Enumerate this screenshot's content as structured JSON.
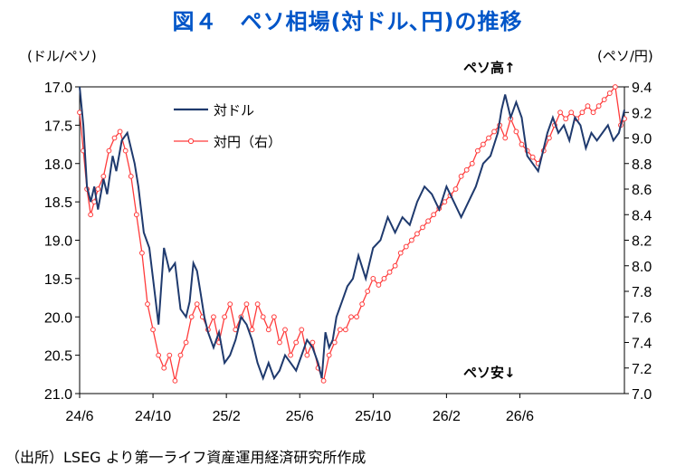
{
  "title": "図４　ペソ相場(対ドル､円)の推移",
  "source": "（出所）LSEG より第一ライフ資産運用経済研究所作成",
  "colors": {
    "usd_line": "#1f3a6e",
    "jpy_line": "#ff3b3b",
    "title": "#0055c8"
  },
  "chart_data": {
    "type": "line",
    "left_axis_label": "(ドル/ペソ)",
    "right_axis_label": "(ペソ/円)",
    "annotation_top": "ペソ高↑",
    "annotation_bottom": "ペソ安↓",
    "x_ticks": [
      "24/6",
      "24/10",
      "25/2",
      "25/6",
      "25/10",
      "26/2",
      "26/6"
    ],
    "x_range_months": [
      0,
      26.5
    ],
    "left_ylim": [
      21.0,
      17.0
    ],
    "left_inverted": true,
    "left_ticks": [
      "17.0",
      "17.5",
      "18.0",
      "18.5",
      "19.0",
      "19.5",
      "20.0",
      "20.5",
      "21.0"
    ],
    "right_ylim": [
      7.0,
      9.4
    ],
    "right_ticks": [
      "9.4",
      "9.2",
      "9.0",
      "8.8",
      "8.6",
      "8.4",
      "8.2",
      "8.0",
      "7.8",
      "7.6",
      "7.4",
      "7.2",
      "7.0"
    ],
    "grid": false,
    "legend_position": "top-left",
    "series": [
      {
        "name": "対ドル",
        "axis": "left",
        "marker": false,
        "points": [
          [
            0,
            17.0
          ],
          [
            0.2,
            17.5
          ],
          [
            0.4,
            18.3
          ],
          [
            0.6,
            18.5
          ],
          [
            0.8,
            18.3
          ],
          [
            1.0,
            18.6
          ],
          [
            1.3,
            18.2
          ],
          [
            1.5,
            18.4
          ],
          [
            1.8,
            17.9
          ],
          [
            2.0,
            18.1
          ],
          [
            2.3,
            17.7
          ],
          [
            2.6,
            17.6
          ],
          [
            3.0,
            18.0
          ],
          [
            3.2,
            18.3
          ],
          [
            3.5,
            18.9
          ],
          [
            3.8,
            19.1
          ],
          [
            4.0,
            19.5
          ],
          [
            4.3,
            20.1
          ],
          [
            4.6,
            19.1
          ],
          [
            4.9,
            19.4
          ],
          [
            5.2,
            19.3
          ],
          [
            5.5,
            19.9
          ],
          [
            5.8,
            20.0
          ],
          [
            6.0,
            19.8
          ],
          [
            6.2,
            19.3
          ],
          [
            6.4,
            19.4
          ],
          [
            6.6,
            19.7
          ],
          [
            6.8,
            20.0
          ],
          [
            7.0,
            20.2
          ],
          [
            7.3,
            20.4
          ],
          [
            7.6,
            20.2
          ],
          [
            7.9,
            20.6
          ],
          [
            8.2,
            20.5
          ],
          [
            8.5,
            20.3
          ],
          [
            8.8,
            20.0
          ],
          [
            9.1,
            20.1
          ],
          [
            9.4,
            20.3
          ],
          [
            9.7,
            20.6
          ],
          [
            10.0,
            20.8
          ],
          [
            10.3,
            20.6
          ],
          [
            10.6,
            20.8
          ],
          [
            10.9,
            20.7
          ],
          [
            11.2,
            20.5
          ],
          [
            11.5,
            20.6
          ],
          [
            11.8,
            20.7
          ],
          [
            12.1,
            20.5
          ],
          [
            12.4,
            20.3
          ],
          [
            12.7,
            20.4
          ],
          [
            13.0,
            20.6
          ],
          [
            13.2,
            20.8
          ],
          [
            13.4,
            20.2
          ],
          [
            13.6,
            20.4
          ],
          [
            13.8,
            20.3
          ],
          [
            14.0,
            20.0
          ],
          [
            14.3,
            19.8
          ],
          [
            14.6,
            19.6
          ],
          [
            14.9,
            19.5
          ],
          [
            15.2,
            19.2
          ],
          [
            15.6,
            19.5
          ],
          [
            16.0,
            19.1
          ],
          [
            16.4,
            19.0
          ],
          [
            16.8,
            18.7
          ],
          [
            17.2,
            18.9
          ],
          [
            17.6,
            18.7
          ],
          [
            18.0,
            18.8
          ],
          [
            18.4,
            18.5
          ],
          [
            18.8,
            18.3
          ],
          [
            19.2,
            18.4
          ],
          [
            19.6,
            18.6
          ],
          [
            20.0,
            18.3
          ],
          [
            20.4,
            18.5
          ],
          [
            20.8,
            18.7
          ],
          [
            21.2,
            18.5
          ],
          [
            21.6,
            18.3
          ],
          [
            22.0,
            18.0
          ],
          [
            22.4,
            17.9
          ],
          [
            22.8,
            17.6
          ],
          [
            23.0,
            17.3
          ],
          [
            23.2,
            17.1
          ],
          [
            23.5,
            17.4
          ],
          [
            23.8,
            17.2
          ],
          [
            24.1,
            17.4
          ],
          [
            24.4,
            17.9
          ],
          [
            24.7,
            18.0
          ],
          [
            25.0,
            18.1
          ],
          [
            25.2,
            17.9
          ],
          [
            25.5,
            17.6
          ],
          [
            25.8,
            17.4
          ],
          [
            26.1,
            17.6
          ],
          [
            26.4,
            17.5
          ],
          [
            26.7,
            17.7
          ],
          [
            27.0,
            17.4
          ],
          [
            27.3,
            17.5
          ],
          [
            27.6,
            17.8
          ],
          [
            27.9,
            17.6
          ],
          [
            28.2,
            17.7
          ],
          [
            28.5,
            17.6
          ],
          [
            28.8,
            17.5
          ],
          [
            29.1,
            17.7
          ],
          [
            29.4,
            17.6
          ],
          [
            29.7,
            17.3
          ]
        ]
      },
      {
        "name": "対円（右）",
        "axis": "right",
        "marker": true,
        "points": [
          [
            0,
            9.2
          ],
          [
            0.2,
            8.9
          ],
          [
            0.4,
            8.6
          ],
          [
            0.6,
            8.4
          ],
          [
            0.8,
            8.5
          ],
          [
            1.0,
            8.6
          ],
          [
            1.3,
            8.7
          ],
          [
            1.6,
            8.9
          ],
          [
            1.9,
            9.0
          ],
          [
            2.2,
            9.05
          ],
          [
            2.5,
            8.9
          ],
          [
            2.8,
            8.7
          ],
          [
            3.1,
            8.4
          ],
          [
            3.4,
            8.1
          ],
          [
            3.7,
            7.7
          ],
          [
            4.0,
            7.5
          ],
          [
            4.3,
            7.3
          ],
          [
            4.6,
            7.2
          ],
          [
            4.9,
            7.3
          ],
          [
            5.2,
            7.1
          ],
          [
            5.5,
            7.3
          ],
          [
            5.8,
            7.4
          ],
          [
            6.1,
            7.6
          ],
          [
            6.4,
            7.7
          ],
          [
            6.7,
            7.6
          ],
          [
            7.0,
            7.5
          ],
          [
            7.3,
            7.6
          ],
          [
            7.6,
            7.4
          ],
          [
            7.9,
            7.6
          ],
          [
            8.2,
            7.7
          ],
          [
            8.5,
            7.5
          ],
          [
            8.8,
            7.6
          ],
          [
            9.1,
            7.7
          ],
          [
            9.4,
            7.5
          ],
          [
            9.7,
            7.7
          ],
          [
            10.0,
            7.6
          ],
          [
            10.3,
            7.5
          ],
          [
            10.6,
            7.6
          ],
          [
            10.9,
            7.4
          ],
          [
            11.2,
            7.5
          ],
          [
            11.5,
            7.3
          ],
          [
            11.8,
            7.4
          ],
          [
            12.1,
            7.5
          ],
          [
            12.4,
            7.3
          ],
          [
            12.7,
            7.4
          ],
          [
            13.0,
            7.2
          ],
          [
            13.3,
            7.1
          ],
          [
            13.6,
            7.3
          ],
          [
            13.9,
            7.4
          ],
          [
            14.2,
            7.5
          ],
          [
            14.5,
            7.5
          ],
          [
            14.8,
            7.6
          ],
          [
            15.1,
            7.6
          ],
          [
            15.4,
            7.7
          ],
          [
            15.7,
            7.8
          ],
          [
            16.0,
            7.9
          ],
          [
            16.3,
            7.85
          ],
          [
            16.6,
            7.9
          ],
          [
            16.9,
            7.95
          ],
          [
            17.2,
            8.0
          ],
          [
            17.5,
            8.1
          ],
          [
            17.8,
            8.15
          ],
          [
            18.1,
            8.2
          ],
          [
            18.4,
            8.25
          ],
          [
            18.7,
            8.3
          ],
          [
            19.0,
            8.35
          ],
          [
            19.3,
            8.4
          ],
          [
            19.6,
            8.45
          ],
          [
            19.9,
            8.5
          ],
          [
            20.2,
            8.55
          ],
          [
            20.5,
            8.6
          ],
          [
            20.8,
            8.7
          ],
          [
            21.1,
            8.75
          ],
          [
            21.4,
            8.8
          ],
          [
            21.7,
            8.9
          ],
          [
            22.0,
            8.95
          ],
          [
            22.3,
            9.0
          ],
          [
            22.6,
            9.05
          ],
          [
            22.9,
            9.1
          ],
          [
            23.2,
            9.0
          ],
          [
            23.5,
            9.15
          ],
          [
            23.8,
            9.05
          ],
          [
            24.1,
            8.95
          ],
          [
            24.4,
            8.9
          ],
          [
            24.7,
            8.85
          ],
          [
            25.0,
            8.8
          ],
          [
            25.3,
            8.9
          ],
          [
            25.6,
            9.0
          ],
          [
            25.9,
            9.1
          ],
          [
            26.2,
            9.2
          ],
          [
            26.5,
            9.15
          ],
          [
            26.8,
            9.2
          ],
          [
            27.1,
            9.15
          ],
          [
            27.4,
            9.2
          ],
          [
            27.7,
            9.25
          ],
          [
            28.0,
            9.2
          ],
          [
            28.3,
            9.25
          ],
          [
            28.6,
            9.3
          ],
          [
            28.9,
            9.35
          ],
          [
            29.2,
            9.4
          ],
          [
            29.5,
            9.1
          ],
          [
            29.7,
            9.15
          ]
        ]
      }
    ]
  }
}
